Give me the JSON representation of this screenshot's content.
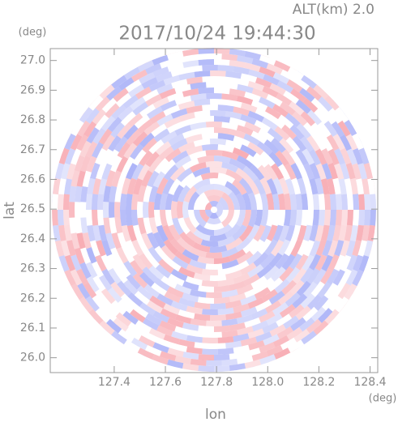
{
  "chart_data": {
    "type": "radar-ppi",
    "title": "2017/10/24 19:44:30",
    "altitude_label": "ALT(km) 2.0",
    "xlabel": "lon",
    "ylabel": "lat",
    "x_unit": "(deg)",
    "y_unit": "(deg)",
    "xlim": [
      127.15,
      128.43
    ],
    "ylim": [
      25.95,
      27.04
    ],
    "xticks": [
      127.4,
      127.6,
      127.8,
      {
        "value": 128.0,
        "label": "128.0"
      },
      128.2,
      128.4
    ],
    "yticks": [
      {
        "value": 26.0,
        "label": "26.0"
      },
      26.1,
      26.2,
      26.3,
      26.4,
      26.5,
      26.6,
      26.7,
      26.8,
      26.9,
      {
        "value": 27.0,
        "label": "27.0"
      }
    ]
  }
}
